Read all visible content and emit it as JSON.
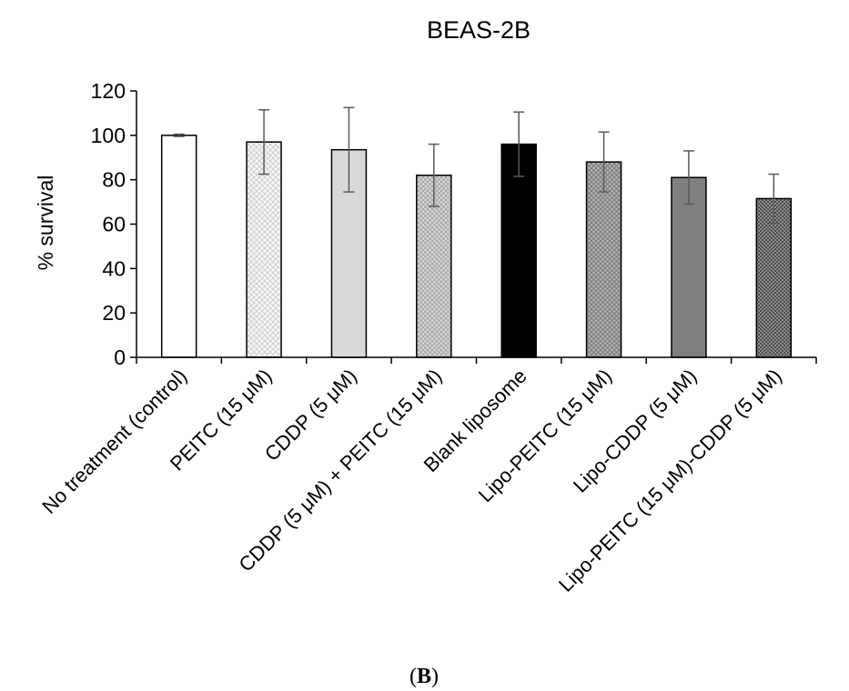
{
  "chart_data": {
    "type": "bar",
    "title": "BEAS-2B",
    "ylabel": "% survival",
    "xlabel": "",
    "ylim": [
      0,
      120
    ],
    "yticks": [
      0,
      20,
      40,
      60,
      80,
      100,
      120
    ],
    "grid": false,
    "legend": "none",
    "categories": [
      "No treatment (control)",
      "PEITC (15 μM)",
      "CDDP (5 μM)",
      "CDDP (5 μM) + PEITC (15 μM)",
      "Blank liposome",
      "Lipo-PEITC (15 μM)",
      "Lipo-CDDP (5 μM)",
      "Lipo-PEITC (15 μM)-CDDP (5 μM)"
    ],
    "values": [
      100,
      97,
      93.5,
      82,
      96,
      88,
      81,
      71.5
    ],
    "errors": [
      0.5,
      14.5,
      19,
      14,
      14.5,
      13.5,
      12,
      11
    ],
    "bar_fills": [
      {
        "color": "#ffffff",
        "pattern": "none"
      },
      {
        "color": "#f4f4f4",
        "pattern": "light-crosshatch"
      },
      {
        "color": "#d9d9d9",
        "pattern": "none"
      },
      {
        "color": "#d2d2d2",
        "pattern": "crosshatch"
      },
      {
        "color": "#000000",
        "pattern": "none"
      },
      {
        "color": "#a8a8a8",
        "pattern": "crosshatch"
      },
      {
        "color": "#7f7f7f",
        "pattern": "none"
      },
      {
        "color": "#4d4d4d",
        "pattern": "dense-crosshatch"
      }
    ]
  },
  "panel": {
    "open": "(",
    "letter": "B",
    "close": ")"
  }
}
